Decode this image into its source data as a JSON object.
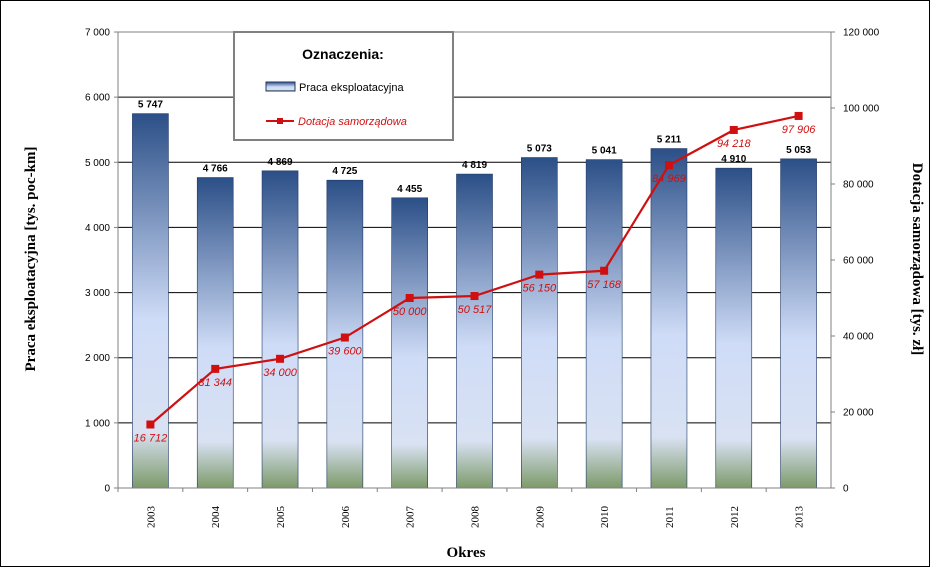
{
  "chart_data": {
    "type": "bar",
    "categories": [
      "2003",
      "2004",
      "2005",
      "2006",
      "2007",
      "2008",
      "2009",
      "2010",
      "2011",
      "2012",
      "2013"
    ],
    "series": [
      {
        "name": "Praca eksploatacyjna",
        "type": "bar",
        "axis": "left",
        "values": [
          5747,
          4766,
          4869,
          4725,
          4455,
          4819,
          5073,
          5041,
          5211,
          4910,
          5053
        ],
        "labels": [
          "5 747",
          "4 766",
          "4 869",
          "4 725",
          "4 455",
          "4 819",
          "5 073",
          "5 041",
          "5 211",
          "4 910",
          "5 053"
        ]
      },
      {
        "name": "Dotacja samorządowa",
        "type": "line",
        "axis": "right",
        "values": [
          16712,
          31344,
          34000,
          39600,
          50000,
          50517,
          56150,
          57168,
          84969,
          94218,
          97906
        ],
        "labels": [
          "16 712",
          "31 344",
          "34 000",
          "39 600",
          "50 000",
          "50 517",
          "56 150",
          "57 168",
          "84 969",
          "94 218",
          "97 906"
        ]
      }
    ],
    "left_axis": {
      "label": "Praca eksploatacyjna [tys. poc-km]",
      "ylim": [
        0,
        7000
      ],
      "ticks": [
        0,
        1000,
        2000,
        3000,
        4000,
        5000,
        6000,
        7000
      ],
      "tick_labels": [
        "0",
        "1 000",
        "2 000",
        "3 000",
        "4 000",
        "5 000",
        "6 000",
        "7 000"
      ]
    },
    "right_axis": {
      "label": "Dotacja samorządowa [tys. zł]",
      "ylim": [
        0,
        120000
      ],
      "ticks": [
        0,
        20000,
        40000,
        60000,
        80000,
        100000,
        120000
      ],
      "tick_labels": [
        "0",
        "20 000",
        "40 000",
        "60 000",
        "80 000",
        "100 000",
        "120 000"
      ]
    },
    "xlabel": "Okres",
    "legend": {
      "title": "Oznaczenia:",
      "placement": "top-center",
      "items": [
        "Praca eksploatacyjna",
        "Dotacja samorządowa"
      ]
    },
    "grid": true,
    "colors": {
      "bar_top": "#2b4f87",
      "bar_mid": "#cfdcf7",
      "bar_bottom": "#7d9a6a",
      "line": "#d01010",
      "line_label": "#d01010",
      "legend_border": "#808080"
    }
  }
}
